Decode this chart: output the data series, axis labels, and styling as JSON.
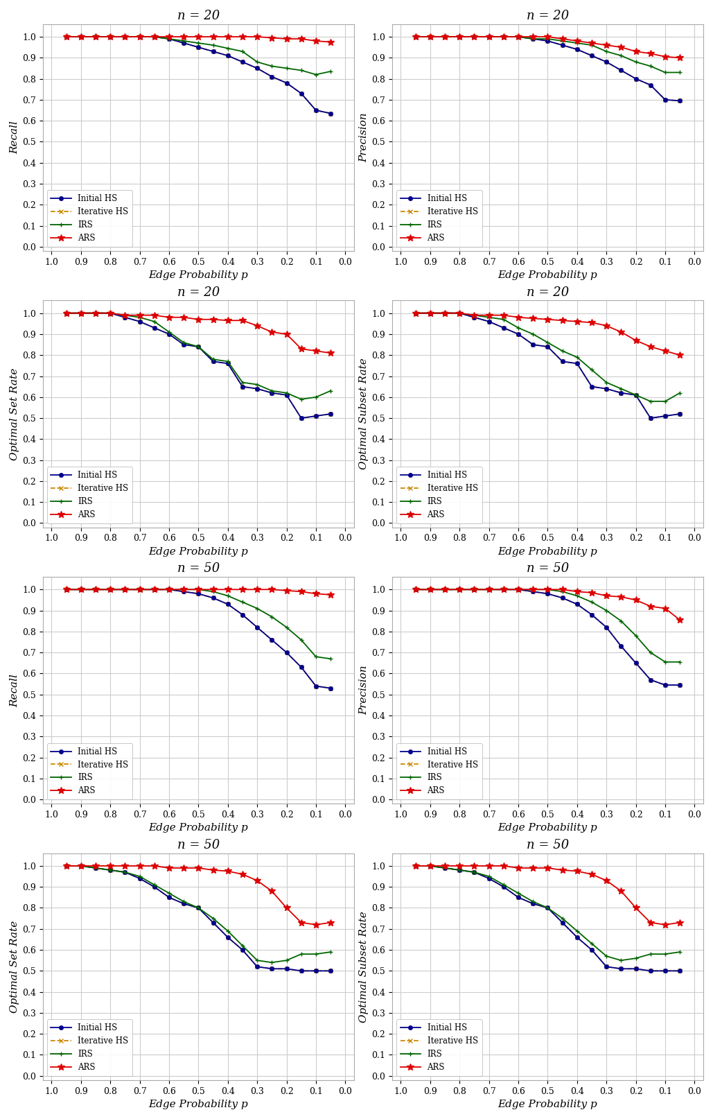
{
  "x_vals": [
    0.95,
    0.9,
    0.85,
    0.8,
    0.75,
    0.7,
    0.65,
    0.6,
    0.55,
    0.5,
    0.45,
    0.4,
    0.35,
    0.3,
    0.25,
    0.2,
    0.15,
    0.1,
    0.05
  ],
  "n20_recall_ARS": [
    1.0,
    1.0,
    1.0,
    1.0,
    1.0,
    1.0,
    1.0,
    1.0,
    1.0,
    1.0,
    1.0,
    1.0,
    1.0,
    1.0,
    0.995,
    0.99,
    0.99,
    0.98,
    0.975
  ],
  "n20_recall_InitHS": [
    1.0,
    1.0,
    1.0,
    1.0,
    1.0,
    1.0,
    1.0,
    0.99,
    0.97,
    0.95,
    0.93,
    0.91,
    0.88,
    0.85,
    0.81,
    0.78,
    0.73,
    0.65,
    0.635
  ],
  "n20_recall_IterHS": [
    1.0,
    1.0,
    1.0,
    1.0,
    1.0,
    1.0,
    1.0,
    0.99,
    0.97,
    0.95,
    0.93,
    0.91,
    0.88,
    0.85,
    0.81,
    0.78,
    0.73,
    0.65,
    0.635
  ],
  "n20_recall_IRS": [
    1.0,
    1.0,
    1.0,
    1.0,
    1.0,
    1.0,
    1.0,
    0.99,
    0.98,
    0.97,
    0.96,
    0.945,
    0.93,
    0.88,
    0.86,
    0.85,
    0.84,
    0.82,
    0.835
  ],
  "n20_precision_ARS": [
    1.0,
    1.0,
    1.0,
    1.0,
    1.0,
    1.0,
    1.0,
    1.0,
    1.0,
    1.0,
    0.99,
    0.98,
    0.97,
    0.96,
    0.95,
    0.93,
    0.92,
    0.905,
    0.9
  ],
  "n20_precision_InitHS": [
    1.0,
    1.0,
    1.0,
    1.0,
    1.0,
    1.0,
    1.0,
    1.0,
    0.99,
    0.98,
    0.96,
    0.94,
    0.91,
    0.88,
    0.84,
    0.8,
    0.77,
    0.7,
    0.695
  ],
  "n20_precision_IterHS": [
    1.0,
    1.0,
    1.0,
    1.0,
    1.0,
    1.0,
    1.0,
    1.0,
    0.99,
    0.98,
    0.96,
    0.94,
    0.91,
    0.88,
    0.84,
    0.8,
    0.77,
    0.7,
    0.695
  ],
  "n20_precision_IRS": [
    1.0,
    1.0,
    1.0,
    1.0,
    1.0,
    1.0,
    1.0,
    1.0,
    0.99,
    0.99,
    0.98,
    0.97,
    0.96,
    0.93,
    0.91,
    0.88,
    0.86,
    0.83,
    0.83
  ],
  "n20_optset_ARS": [
    1.0,
    1.0,
    1.0,
    1.0,
    0.99,
    0.99,
    0.99,
    0.98,
    0.98,
    0.97,
    0.97,
    0.965,
    0.965,
    0.94,
    0.91,
    0.9,
    0.83,
    0.82,
    0.81
  ],
  "n20_optset_InitHS": [
    1.0,
    1.0,
    1.0,
    1.0,
    0.98,
    0.96,
    0.93,
    0.9,
    0.85,
    0.84,
    0.77,
    0.76,
    0.65,
    0.64,
    0.62,
    0.61,
    0.5,
    0.51,
    0.52
  ],
  "n20_optset_IterHS": [
    1.0,
    1.0,
    1.0,
    1.0,
    0.98,
    0.96,
    0.93,
    0.9,
    0.85,
    0.84,
    0.77,
    0.76,
    0.65,
    0.64,
    0.62,
    0.61,
    0.5,
    0.51,
    0.52
  ],
  "n20_optset_IRS": [
    1.0,
    1.0,
    1.0,
    1.0,
    0.99,
    0.98,
    0.96,
    0.91,
    0.86,
    0.84,
    0.78,
    0.77,
    0.67,
    0.66,
    0.63,
    0.62,
    0.59,
    0.6,
    0.63
  ],
  "n20_optsub_ARS": [
    1.0,
    1.0,
    1.0,
    1.0,
    0.99,
    0.99,
    0.99,
    0.98,
    0.975,
    0.97,
    0.965,
    0.96,
    0.955,
    0.94,
    0.91,
    0.87,
    0.84,
    0.82,
    0.8
  ],
  "n20_optsub_InitHS": [
    1.0,
    1.0,
    1.0,
    1.0,
    0.98,
    0.96,
    0.93,
    0.9,
    0.85,
    0.84,
    0.77,
    0.76,
    0.65,
    0.64,
    0.62,
    0.61,
    0.5,
    0.51,
    0.52
  ],
  "n20_optsub_IterHS": [
    1.0,
    1.0,
    1.0,
    1.0,
    0.98,
    0.96,
    0.93,
    0.9,
    0.85,
    0.84,
    0.77,
    0.76,
    0.65,
    0.64,
    0.62,
    0.61,
    0.5,
    0.51,
    0.52
  ],
  "n20_optsub_IRS": [
    1.0,
    1.0,
    1.0,
    1.0,
    0.99,
    0.98,
    0.97,
    0.93,
    0.9,
    0.86,
    0.82,
    0.79,
    0.73,
    0.67,
    0.64,
    0.61,
    0.58,
    0.58,
    0.62
  ],
  "n50_recall_ARS": [
    1.0,
    1.0,
    1.0,
    1.0,
    1.0,
    1.0,
    1.0,
    1.0,
    1.0,
    1.0,
    1.0,
    1.0,
    1.0,
    1.0,
    1.0,
    0.995,
    0.99,
    0.98,
    0.975
  ],
  "n50_recall_InitHS": [
    1.0,
    1.0,
    1.0,
    1.0,
    1.0,
    1.0,
    1.0,
    1.0,
    0.99,
    0.98,
    0.96,
    0.93,
    0.88,
    0.82,
    0.76,
    0.7,
    0.63,
    0.54,
    0.53
  ],
  "n50_recall_IterHS": [
    1.0,
    1.0,
    1.0,
    1.0,
    1.0,
    1.0,
    1.0,
    1.0,
    0.99,
    0.98,
    0.96,
    0.93,
    0.88,
    0.82,
    0.76,
    0.7,
    0.63,
    0.54,
    0.53
  ],
  "n50_recall_IRS": [
    1.0,
    1.0,
    1.0,
    1.0,
    1.0,
    1.0,
    1.0,
    1.0,
    1.0,
    1.0,
    0.99,
    0.97,
    0.94,
    0.91,
    0.87,
    0.82,
    0.76,
    0.68,
    0.67
  ],
  "n50_precision_ARS": [
    1.0,
    1.0,
    1.0,
    1.0,
    1.0,
    1.0,
    1.0,
    1.0,
    1.0,
    1.0,
    1.0,
    0.99,
    0.985,
    0.97,
    0.965,
    0.95,
    0.92,
    0.91,
    0.855
  ],
  "n50_precision_InitHS": [
    1.0,
    1.0,
    1.0,
    1.0,
    1.0,
    1.0,
    1.0,
    1.0,
    0.99,
    0.98,
    0.96,
    0.93,
    0.88,
    0.82,
    0.73,
    0.65,
    0.57,
    0.545,
    0.545
  ],
  "n50_precision_IterHS": [
    1.0,
    1.0,
    1.0,
    1.0,
    1.0,
    1.0,
    1.0,
    1.0,
    0.99,
    0.98,
    0.96,
    0.93,
    0.88,
    0.82,
    0.73,
    0.65,
    0.57,
    0.545,
    0.545
  ],
  "n50_precision_IRS": [
    1.0,
    1.0,
    1.0,
    1.0,
    1.0,
    1.0,
    1.0,
    1.0,
    1.0,
    1.0,
    0.99,
    0.97,
    0.94,
    0.9,
    0.85,
    0.78,
    0.7,
    0.655,
    0.655
  ],
  "n50_optset_ARS": [
    1.0,
    1.0,
    1.0,
    1.0,
    1.0,
    1.0,
    1.0,
    0.99,
    0.99,
    0.99,
    0.98,
    0.975,
    0.96,
    0.93,
    0.88,
    0.8,
    0.73,
    0.72,
    0.73
  ],
  "n50_optset_InitHS": [
    1.0,
    1.0,
    0.99,
    0.98,
    0.97,
    0.94,
    0.9,
    0.85,
    0.82,
    0.8,
    0.73,
    0.66,
    0.6,
    0.52,
    0.51,
    0.51,
    0.5,
    0.5,
    0.5
  ],
  "n50_optset_IterHS": [
    1.0,
    1.0,
    0.99,
    0.98,
    0.97,
    0.94,
    0.9,
    0.85,
    0.82,
    0.8,
    0.73,
    0.66,
    0.6,
    0.52,
    0.51,
    0.51,
    0.5,
    0.5,
    0.5
  ],
  "n50_optset_IRS": [
    1.0,
    1.0,
    0.99,
    0.98,
    0.97,
    0.95,
    0.91,
    0.87,
    0.83,
    0.8,
    0.75,
    0.69,
    0.62,
    0.55,
    0.54,
    0.55,
    0.58,
    0.58,
    0.59
  ],
  "n50_optsub_ARS": [
    1.0,
    1.0,
    1.0,
    1.0,
    1.0,
    1.0,
    1.0,
    0.99,
    0.99,
    0.99,
    0.98,
    0.975,
    0.96,
    0.93,
    0.88,
    0.8,
    0.73,
    0.72,
    0.73
  ],
  "n50_optsub_InitHS": [
    1.0,
    1.0,
    0.99,
    0.98,
    0.97,
    0.94,
    0.9,
    0.85,
    0.82,
    0.8,
    0.73,
    0.66,
    0.6,
    0.52,
    0.51,
    0.51,
    0.5,
    0.5,
    0.5
  ],
  "n50_optsub_IterHS": [
    1.0,
    1.0,
    0.99,
    0.98,
    0.97,
    0.94,
    0.9,
    0.85,
    0.82,
    0.8,
    0.73,
    0.66,
    0.6,
    0.52,
    0.51,
    0.51,
    0.5,
    0.5,
    0.5
  ],
  "n50_optsub_IRS": [
    1.0,
    1.0,
    0.99,
    0.98,
    0.97,
    0.95,
    0.91,
    0.87,
    0.83,
    0.8,
    0.75,
    0.69,
    0.63,
    0.57,
    0.55,
    0.56,
    0.58,
    0.58,
    0.59
  ],
  "color_ARS": "#dd0000",
  "color_InitHS": "#00008b",
  "color_IterHS": "#cc8800",
  "color_IRS": "#006600",
  "titles_left": [
    "n = 20",
    "n = 20",
    "n = 50",
    "n = 50"
  ],
  "titles_right": [
    "n = 20",
    "n = 20",
    "n = 50",
    "n = 50"
  ],
  "ylabels_left": [
    "Recall",
    "Optimal Set Rate",
    "Recall",
    "Optimal Set Rate"
  ],
  "ylabels_right": [
    "Precision",
    "Optimal Subset Rate",
    "Precision",
    "Optimal Subset Rate"
  ],
  "xlabel": "Edge Probability p",
  "xticks": [
    1.0,
    0.9,
    0.8,
    0.7,
    0.6,
    0.5,
    0.4,
    0.3,
    0.2,
    0.1,
    0.0
  ],
  "yticks": [
    0.0,
    0.1,
    0.2,
    0.3,
    0.4,
    0.5,
    0.6,
    0.7,
    0.8,
    0.9,
    1.0
  ],
  "ylim": [
    -0.02,
    1.06
  ],
  "xlim": [
    1.03,
    -0.03
  ]
}
